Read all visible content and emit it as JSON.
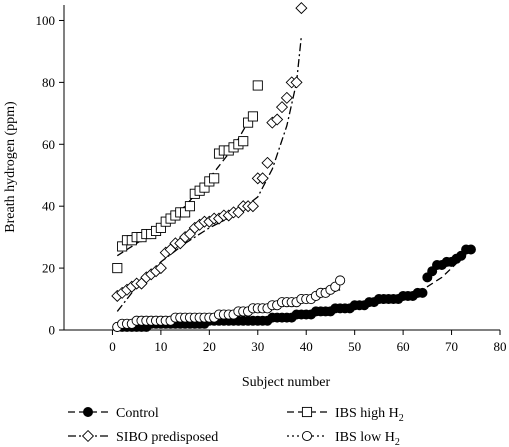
{
  "chart_data": {
    "type": "scatter",
    "xlabel": "Subject number",
    "ylabel": "Breath hydrogen (ppm)",
    "xlim": [
      -10,
      80
    ],
    "ylim": [
      0,
      105
    ],
    "xticks": [
      0,
      10,
      20,
      30,
      40,
      50,
      60,
      70,
      80
    ],
    "yticks": [
      0,
      20,
      40,
      60,
      80,
      100
    ],
    "legend_position": "bottom",
    "series": [
      {
        "name": "Control",
        "name_sub": "",
        "marker": "filled-circle",
        "line_style": "dashed",
        "x": [
          1,
          2,
          3,
          4,
          5,
          6,
          7,
          8,
          9,
          10,
          11,
          12,
          13,
          14,
          15,
          16,
          17,
          18,
          19,
          20,
          21,
          22,
          23,
          24,
          25,
          26,
          27,
          28,
          29,
          30,
          31,
          32,
          33,
          34,
          35,
          36,
          37,
          38,
          39,
          40,
          41,
          42,
          43,
          44,
          45,
          46,
          47,
          48,
          49,
          50,
          51,
          52,
          53,
          54,
          55,
          56,
          57,
          58,
          59,
          60,
          61,
          62,
          63,
          64,
          65,
          66,
          67,
          68,
          69,
          70,
          71,
          72,
          73,
          74
        ],
        "y": [
          1,
          1,
          1,
          1,
          1,
          1,
          1,
          2,
          2,
          2,
          2,
          2,
          2,
          2,
          2,
          2,
          2,
          2,
          2,
          3,
          3,
          3,
          3,
          3,
          3,
          3,
          3,
          3,
          3,
          3,
          3,
          3,
          4,
          4,
          4,
          4,
          4,
          5,
          5,
          5,
          5,
          6,
          6,
          6,
          6,
          7,
          7,
          7,
          7,
          8,
          8,
          8,
          9,
          9,
          10,
          10,
          10,
          10,
          10,
          11,
          11,
          11,
          12,
          12,
          17,
          19,
          21,
          21,
          22,
          22,
          23,
          24,
          26,
          26
        ],
        "fit_x": [
          0,
          10,
          20,
          30,
          40,
          50,
          60,
          63,
          68,
          74
        ],
        "fit_y": [
          0.5,
          1.5,
          2.5,
          3.5,
          5,
          7.5,
          10.5,
          12,
          17,
          26
        ]
      },
      {
        "name": "SIBO predisposed",
        "name_sub": "",
        "marker": "open-diamond",
        "line_style": "dash-dot",
        "x": [
          1,
          2,
          3,
          4,
          5,
          6,
          7,
          8,
          9,
          10,
          11,
          12,
          13,
          14,
          15,
          16,
          17,
          18,
          19,
          20,
          21,
          22,
          23,
          24,
          25,
          26,
          27,
          28,
          29,
          30,
          31,
          32,
          33,
          34,
          35,
          36,
          37,
          38,
          39
        ],
        "y": [
          11,
          12,
          13,
          14,
          15,
          15,
          17,
          18,
          19,
          20,
          25,
          26,
          28,
          28,
          30,
          31,
          33,
          34,
          35,
          35,
          36,
          36,
          37,
          37,
          38,
          38,
          40,
          40,
          40,
          49,
          49,
          54,
          67,
          68,
          72,
          75,
          80,
          80,
          104
        ],
        "fit_x": [
          1,
          5,
          10,
          15,
          20,
          25,
          30,
          33,
          36,
          38,
          39
        ],
        "fit_y": [
          6,
          14,
          22,
          28,
          33,
          37,
          43,
          52,
          66,
          80,
          95
        ]
      },
      {
        "name": "IBS high H",
        "name_sub": "2",
        "marker": "open-square",
        "line_style": "dashed",
        "x": [
          1,
          2,
          3,
          4,
          5,
          6,
          7,
          8,
          9,
          10,
          11,
          12,
          13,
          14,
          15,
          16,
          17,
          18,
          19,
          20,
          21,
          22,
          23,
          24,
          25,
          26,
          27,
          28,
          29,
          30
        ],
        "y": [
          20,
          27,
          29,
          29,
          30,
          30,
          31,
          31,
          32,
          33,
          35,
          36,
          37,
          38,
          38,
          40,
          44,
          45,
          46,
          48,
          49,
          57,
          58,
          58,
          59,
          60,
          61,
          67,
          69,
          79
        ],
        "fit_x": [
          1,
          5,
          10,
          15,
          20,
          25,
          29
        ],
        "fit_y": [
          24,
          28,
          33,
          40,
          49,
          59,
          70
        ]
      },
      {
        "name": "IBS low H",
        "name_sub": "2",
        "marker": "open-circle",
        "line_style": "dotted",
        "x": [
          1,
          2,
          3,
          4,
          5,
          6,
          7,
          8,
          9,
          10,
          11,
          12,
          13,
          14,
          15,
          16,
          17,
          18,
          19,
          20,
          21,
          22,
          23,
          24,
          25,
          26,
          27,
          28,
          29,
          30,
          31,
          32,
          33,
          34,
          35,
          36,
          37,
          38,
          39,
          40,
          41,
          42,
          43,
          44,
          45,
          46,
          47
        ],
        "y": [
          1,
          2,
          2,
          2,
          3,
          3,
          3,
          3,
          3,
          3,
          3,
          3,
          4,
          4,
          4,
          4,
          4,
          4,
          4,
          4,
          4,
          5,
          5,
          5,
          5,
          6,
          6,
          6,
          7,
          7,
          7,
          7,
          8,
          8,
          9,
          9,
          9,
          9,
          10,
          10,
          10,
          11,
          12,
          12,
          13,
          14,
          16
        ],
        "fit_x": [
          1,
          10,
          20,
          30,
          40,
          45,
          47
        ],
        "fit_y": [
          1,
          2.5,
          4,
          6.5,
          9.5,
          12,
          13
        ]
      }
    ]
  }
}
